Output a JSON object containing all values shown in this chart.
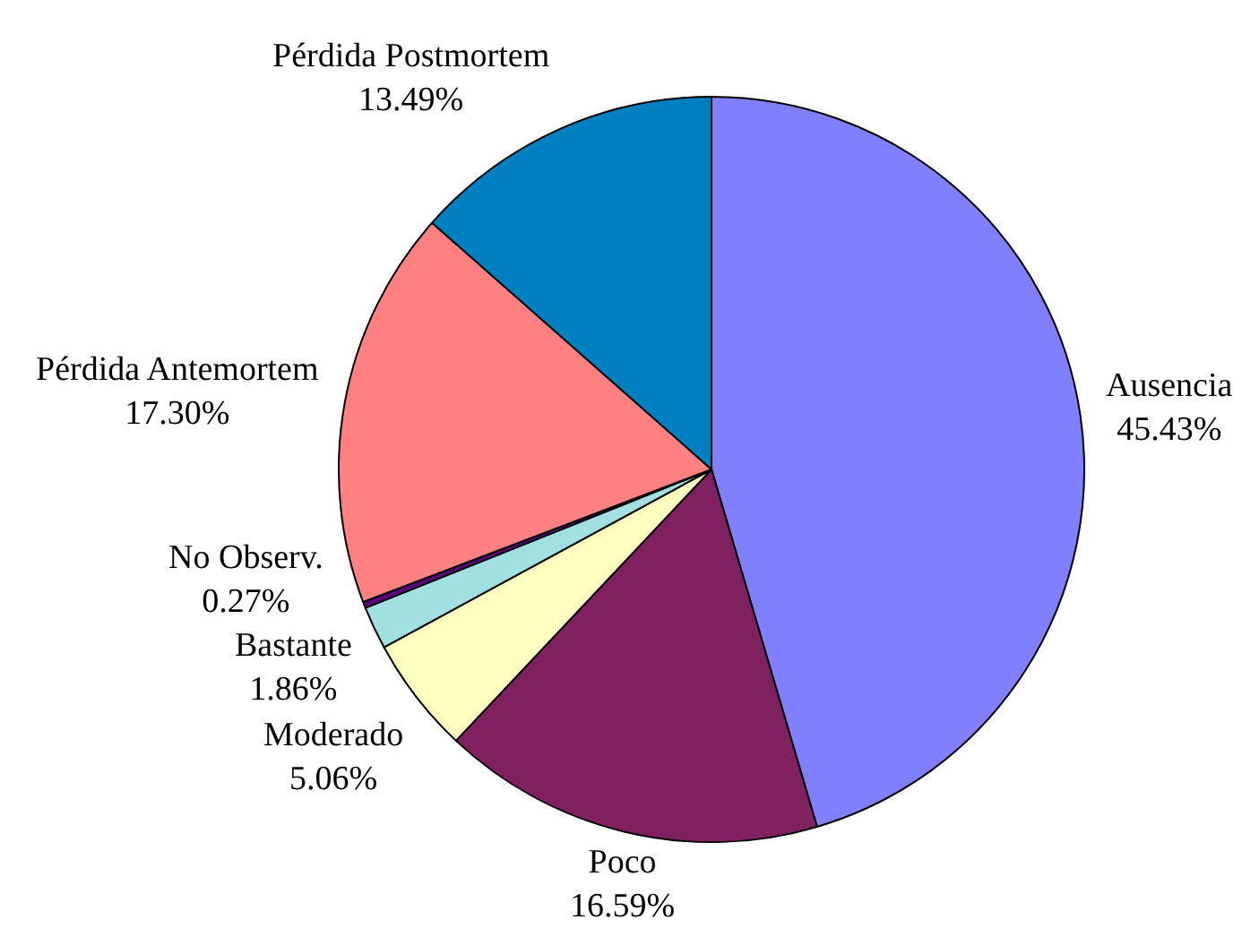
{
  "chart_data": {
    "type": "pie",
    "categories": [
      "Ausencia",
      "Poco",
      "Moderado",
      "Bastante",
      "No Observ.",
      "Pérdida Antemortem",
      "Pérdida Postmortem"
    ],
    "values": [
      45.43,
      16.59,
      5.06,
      1.86,
      0.27,
      17.3,
      13.49
    ],
    "value_labels": [
      "45.43%",
      "16.59%",
      "5.06%",
      "1.86%",
      "0.27%",
      "17.30%",
      "13.49%"
    ],
    "colors": [
      "#8080ff",
      "#802060",
      "#ffffc0",
      "#a0e0e0",
      "#600080",
      "#ff8080",
      "#0080c0"
    ]
  }
}
